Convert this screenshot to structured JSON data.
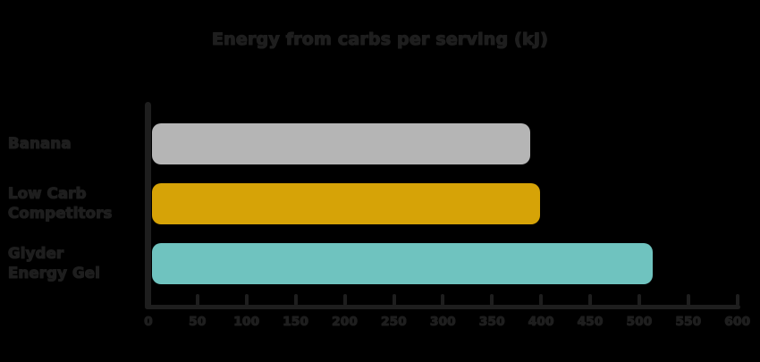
{
  "chart_data": {
    "type": "bar",
    "orientation": "horizontal",
    "title": "Energy from carbs per serving (kJ)",
    "categories": [
      "Banana",
      "Low Carb Competitors",
      "Glyder Energy Gel"
    ],
    "category_lines": [
      [
        "Banana"
      ],
      [
        "Low Carb",
        "Competitors"
      ],
      [
        "Glyder",
        "Energy Gel"
      ]
    ],
    "values": [
      385,
      395,
      510
    ],
    "bar_colors": [
      "#b5b5b5",
      "#d6a307",
      "#6fc3bf"
    ],
    "xlabel": "",
    "ylabel": "",
    "xlim": [
      0,
      600
    ],
    "x_ticks": [
      0,
      50,
      100,
      150,
      200,
      250,
      300,
      350,
      400,
      450,
      500,
      550,
      600
    ],
    "grid": false,
    "legend": false,
    "background_color": "#000000",
    "axis_color": "#1e1e1e",
    "text_color": "#1e1e1e"
  }
}
